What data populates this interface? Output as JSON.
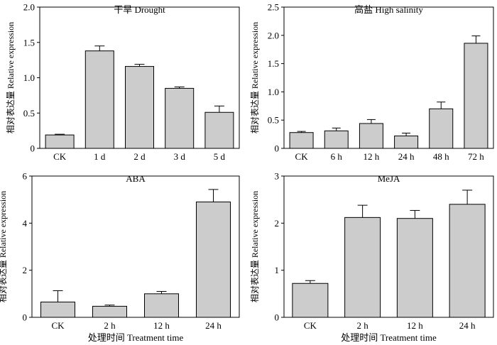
{
  "figure": {
    "xlabel": "处理时间 Treatment time",
    "ylabel": "相对表达量 Relative expression"
  },
  "chart_data": [
    {
      "type": "bar",
      "title": "干旱 Drought",
      "categories": [
        "CK",
        "1 d",
        "2 d",
        "3 d",
        "5 d"
      ],
      "values": [
        0.19,
        1.38,
        1.16,
        0.85,
        0.51
      ],
      "errors": [
        0.01,
        0.07,
        0.03,
        0.02,
        0.09
      ],
      "ylim": [
        0,
        2.0
      ],
      "yticks": [
        "0",
        "0.5",
        "1.0",
        "1.5",
        "2.0"
      ],
      "ylabel": "相对表达量 Relative expression",
      "xlabel": ""
    },
    {
      "type": "bar",
      "title": "高盐 High salinity",
      "categories": [
        "CK",
        "6 h",
        "12 h",
        "24 h",
        "48 h",
        "72 h"
      ],
      "values": [
        0.28,
        0.31,
        0.44,
        0.22,
        0.7,
        1.86
      ],
      "errors": [
        0.02,
        0.05,
        0.07,
        0.05,
        0.12,
        0.13
      ],
      "ylim": [
        0,
        2.5
      ],
      "yticks": [
        "0",
        "0.5",
        "1.0",
        "1.5",
        "2.0",
        "2.5"
      ],
      "ylabel": "相对表达量 Relative expression",
      "xlabel": ""
    },
    {
      "type": "bar",
      "title": "ABA",
      "categories": [
        "CK",
        "2 h",
        "12 h",
        "24 h"
      ],
      "values": [
        0.65,
        0.47,
        1.0,
        4.9
      ],
      "errors": [
        0.48,
        0.05,
        0.1,
        0.53
      ],
      "ylim": [
        0,
        6
      ],
      "yticks": [
        "0",
        "2",
        "4",
        "6"
      ],
      "ylabel": "相对表达量 Relative expression",
      "xlabel": "处理时间 Treatment time"
    },
    {
      "type": "bar",
      "title": "MeJA",
      "categories": [
        "CK",
        "2 h",
        "12 h",
        "24 h"
      ],
      "values": [
        0.72,
        2.12,
        2.1,
        2.4
      ],
      "errors": [
        0.06,
        0.26,
        0.17,
        0.3
      ],
      "ylim": [
        0,
        3
      ],
      "yticks": [
        "0",
        "1",
        "2",
        "3"
      ],
      "ylabel": "相对表达量 Relative expression",
      "xlabel": "处理时间 Treatment time"
    }
  ]
}
